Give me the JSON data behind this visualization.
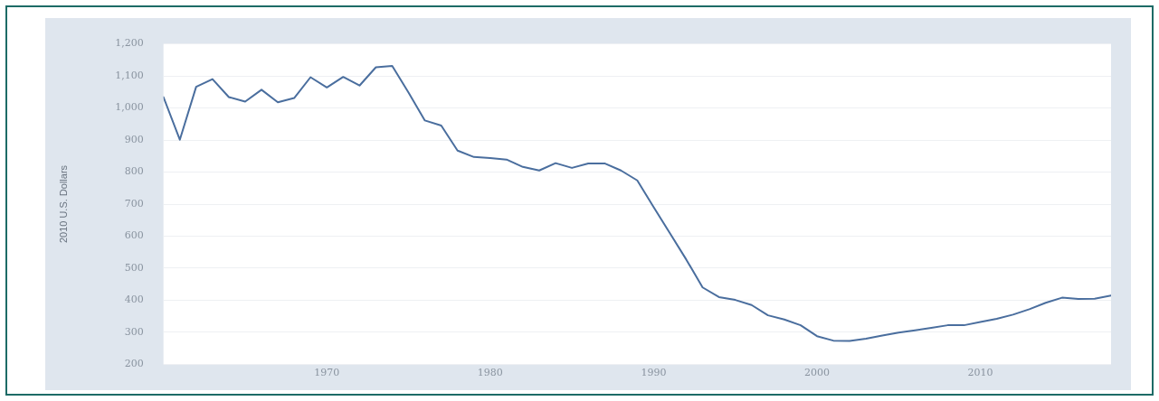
{
  "chart_data": {
    "type": "line",
    "ylabel": "2010 U.S. Dollars",
    "x": [
      1960,
      1961,
      1962,
      1963,
      1964,
      1965,
      1966,
      1967,
      1968,
      1969,
      1970,
      1971,
      1972,
      1973,
      1974,
      1975,
      1976,
      1977,
      1978,
      1979,
      1980,
      1981,
      1982,
      1983,
      1984,
      1985,
      1986,
      1987,
      1988,
      1989,
      1990,
      1991,
      1992,
      1993,
      1994,
      1995,
      1996,
      1997,
      1998,
      1999,
      2000,
      2001,
      2002,
      2003,
      2004,
      2005,
      2006,
      2007,
      2008,
      2009,
      2010,
      2011,
      2012,
      2013,
      2014,
      2015,
      2016,
      2017,
      2018
    ],
    "series": [
      {
        "color": "#4a6e9e",
        "values": [
          1034,
          901,
          1066,
          1090,
          1034,
          1020,
          1057,
          1018,
          1031,
          1096,
          1064,
          1097,
          1070,
          1127,
          1131,
          1048,
          961,
          945,
          867,
          847,
          844,
          839,
          816,
          805,
          828,
          813,
          827,
          827,
          805,
          774,
          691,
          609,
          527,
          440,
          410,
          401,
          385,
          353,
          340,
          322,
          288,
          274,
          273,
          280,
          290,
          299,
          306,
          314,
          322,
          322,
          332,
          342,
          355,
          372,
          392,
          408,
          404,
          405,
          415
        ]
      }
    ],
    "xlim": [
      1960,
      2018
    ],
    "xticks": [
      1970,
      1980,
      1990,
      2000,
      2010
    ],
    "ylim": [
      200,
      1200
    ],
    "yticks": [
      {
        "value": 200,
        "label": "200"
      },
      {
        "value": 300,
        "label": "300"
      },
      {
        "value": 400,
        "label": "400"
      },
      {
        "value": 500,
        "label": "500"
      },
      {
        "value": 600,
        "label": "600"
      },
      {
        "value": 700,
        "label": "700"
      },
      {
        "value": 800,
        "label": "800"
      },
      {
        "value": 900,
        "label": "900"
      },
      {
        "value": 1000,
        "label": "1,000"
      },
      {
        "value": 1100,
        "label": "1,100"
      },
      {
        "value": 1200,
        "label": "1,200"
      }
    ],
    "grid": "y",
    "legend": false,
    "marker": "none",
    "line_style": "solid"
  }
}
